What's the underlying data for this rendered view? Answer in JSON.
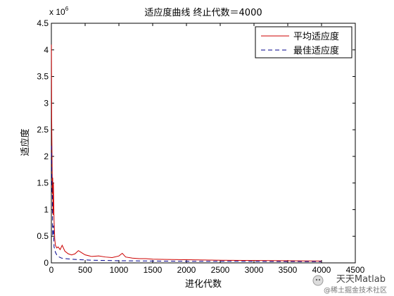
{
  "chart_data": {
    "type": "line",
    "title": "适应度曲线  终止代数＝4000",
    "xlabel": "进化代数",
    "ylabel": "适应度",
    "xlim": [
      0,
      4500
    ],
    "ylim": [
      0,
      4500000
    ],
    "x_ticks": [
      "0",
      "500",
      "1000",
      "1500",
      "2000",
      "2500",
      "3000",
      "3500",
      "4000",
      "4500"
    ],
    "y_ticks": [
      "0",
      "0.5",
      "1",
      "1.5",
      "2",
      "2.5",
      "3",
      "3.5",
      "4",
      "4.5"
    ],
    "y_exponent_label": "x 10",
    "y_exponent_power": "6",
    "legend_position": "top-right",
    "grid": false,
    "series": [
      {
        "name": "平均适应度",
        "color": "#cc0000",
        "style": "solid",
        "x": [
          1,
          5,
          10,
          15,
          20,
          25,
          30,
          40,
          50,
          60,
          80,
          100,
          130,
          160,
          200,
          250,
          300,
          350,
          400,
          450,
          500,
          600,
          700,
          800,
          900,
          1000,
          1050,
          1100,
          1200,
          1300,
          1400,
          1500,
          1700,
          2000,
          2500,
          3000,
          3500,
          4000
        ],
        "y": [
          4100000,
          2700000,
          1950000,
          1300000,
          1600000,
          900000,
          1500000,
          800000,
          450000,
          330000,
          280000,
          300000,
          250000,
          330000,
          220000,
          170000,
          150000,
          170000,
          230000,
          190000,
          150000,
          120000,
          130000,
          110000,
          100000,
          130000,
          180000,
          110000,
          90000,
          80000,
          80000,
          70000,
          65000,
          60000,
          50000,
          45000,
          40000,
          35000
        ]
      },
      {
        "name": "最佳适应度",
        "color": "#00008b",
        "style": "dashed",
        "x": [
          1,
          5,
          10,
          15,
          20,
          30,
          40,
          60,
          80,
          100,
          150,
          200,
          300,
          400,
          600,
          800,
          1000,
          1500,
          2000,
          2500,
          3000,
          3500,
          4000
        ],
        "y": [
          2200000,
          1700000,
          1350000,
          1250000,
          500000,
          700000,
          300000,
          200000,
          150000,
          120000,
          90000,
          80000,
          70000,
          60000,
          50000,
          45000,
          40000,
          35000,
          30000,
          30000,
          28000,
          26000,
          25000
        ]
      }
    ]
  },
  "watermark": {
    "line1": "天天Matlab",
    "line2": "@稀土掘金技术社区"
  }
}
